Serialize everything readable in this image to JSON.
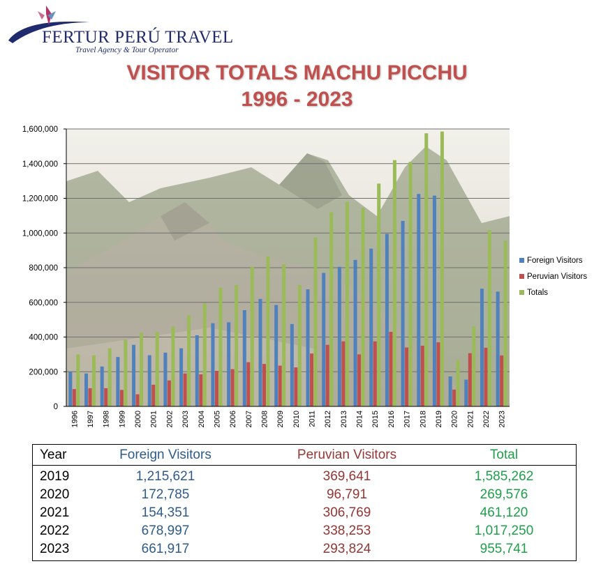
{
  "logo": {
    "name": "FERTUR PERÚ TRAVEL",
    "tagline": "Travel Agency & Tour Operator"
  },
  "title_line1": "VISITOR TOTALS MACHU PICCHU",
  "title_line2": "1996 - 2023",
  "chart_data": {
    "type": "bar",
    "title": "VISITOR TOTALS MACHU PICCHU 1996 - 2023",
    "categories": [
      "1996",
      "1997",
      "1998",
      "1999",
      "2000",
      "2001",
      "2002",
      "2003",
      "2004",
      "2005",
      "2006",
      "2007",
      "2008",
      "2009",
      "2010",
      "2011",
      "2012",
      "2013",
      "2014",
      "2015",
      "2016",
      "2017",
      "2018",
      "2019",
      "2020",
      "2021",
      "2022",
      "2023"
    ],
    "series": [
      {
        "name": "Foreign Visitors",
        "color": "#4f81bd",
        "values": [
          200000,
          190000,
          230000,
          285000,
          355000,
          295000,
          310000,
          335000,
          410000,
          480000,
          485000,
          555000,
          620000,
          585000,
          475000,
          675000,
          770000,
          805000,
          845000,
          910000,
          995000,
          1070000,
          1225000,
          1215621,
          172785,
          154351,
          678997,
          661917
        ]
      },
      {
        "name": "Peruvian Visitors",
        "color": "#c0504d",
        "values": [
          100000,
          105000,
          105000,
          95000,
          70000,
          125000,
          150000,
          190000,
          185000,
          205000,
          215000,
          255000,
          245000,
          235000,
          225000,
          305000,
          355000,
          375000,
          300000,
          375000,
          430000,
          340000,
          350000,
          369641,
          96791,
          306769,
          338253,
          293824
        ]
      },
      {
        "name": "Totals",
        "color": "#9bbb59",
        "values": [
          300000,
          295000,
          335000,
          385000,
          425000,
          430000,
          460000,
          525000,
          595000,
          685000,
          700000,
          805000,
          865000,
          820000,
          700000,
          975000,
          1120000,
          1180000,
          1145000,
          1285000,
          1420000,
          1410000,
          1575000,
          1585262,
          269576,
          461120,
          1017250,
          955741
        ]
      }
    ],
    "ylim": [
      0,
      1600000
    ],
    "yticks": [
      "0",
      "200,000",
      "400,000",
      "600,000",
      "800,000",
      "1,000,000",
      "1,200,000",
      "1,400,000",
      "1,600,000"
    ],
    "grid": true,
    "legend_position": "right"
  },
  "table": {
    "headers": [
      "Year",
      "Foreign Visitors",
      "Peruvian Visitors",
      "Total"
    ],
    "rows": [
      [
        "2019",
        "1,215,621",
        "369,641",
        "1,585,262"
      ],
      [
        "2020",
        "172,785",
        "96,791",
        "269,576"
      ],
      [
        "2021",
        "154,351",
        "306,769",
        "461,120"
      ],
      [
        "2022",
        "678,997",
        "338,253",
        "1,017,250"
      ],
      [
        "2023",
        "661,917",
        "293,824",
        "955,741"
      ]
    ]
  }
}
